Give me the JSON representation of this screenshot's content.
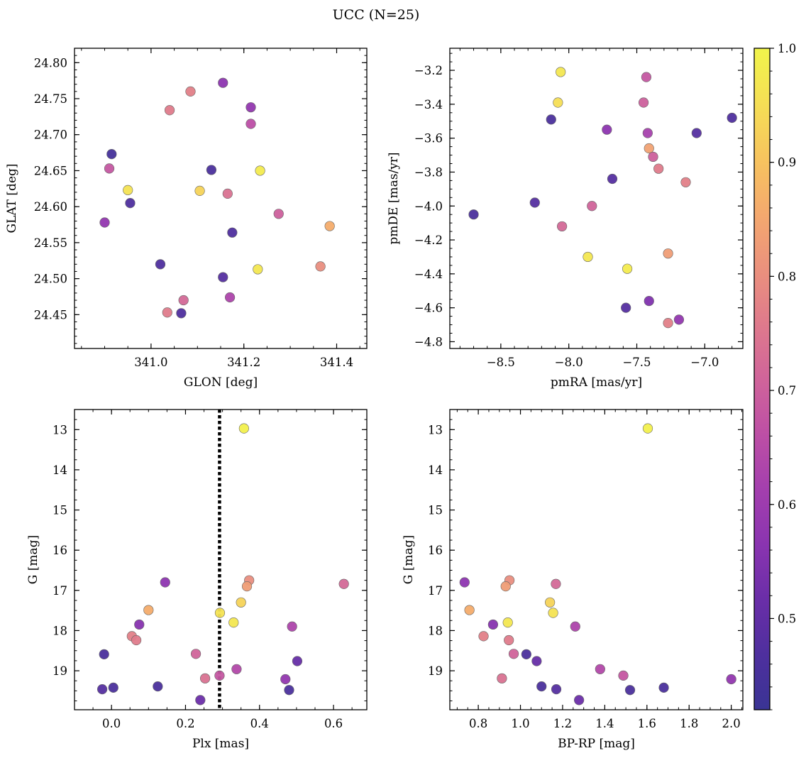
{
  "figure": {
    "title": "UCC (N=25)"
  },
  "colorbar": {
    "colormap": "plasma",
    "range": [
      0.42,
      1.0
    ],
    "ticks": [
      0.5,
      0.6,
      0.7,
      0.8,
      0.9,
      1.0
    ],
    "tick_labels": [
      "0.5",
      "0.6",
      "0.7",
      "0.8",
      "0.9",
      "1.0"
    ],
    "stops": [
      "#3a3494",
      "#4e2f9e",
      "#6a2ea8",
      "#8a34b0",
      "#a43fae",
      "#bd4fa5",
      "#d0649a",
      "#df7a8c",
      "#eb917d",
      "#f4a96e",
      "#f7c45e",
      "#f5df55",
      "#f1f44b"
    ]
  },
  "chart_data": [
    {
      "type": "scatter",
      "title": "",
      "xlabel": "GLON [deg]",
      "ylabel": "GLAT [deg]",
      "xlim": [
        340.835,
        341.465
      ],
      "ylim": [
        24.403,
        24.82
      ],
      "invert_y": false,
      "xticks": [
        341.0,
        341.2,
        341.4
      ],
      "xtick_labels": [
        "341.0",
        "341.2",
        "341.4"
      ],
      "xminor": 0.05,
      "yticks": [
        24.45,
        24.5,
        24.55,
        24.6,
        24.65,
        24.7,
        24.75,
        24.8
      ],
      "ytick_labels": [
        "24.45",
        "24.50",
        "24.55",
        "24.60",
        "24.65",
        "24.70",
        "24.75",
        "24.80"
      ],
      "yminor": 0.01,
      "points": [
        {
          "x": 340.915,
          "y": 24.673,
          "c": 0.45
        },
        {
          "x": 340.91,
          "y": 24.653,
          "c": 0.68
        },
        {
          "x": 340.95,
          "y": 24.623,
          "c": 0.96
        },
        {
          "x": 340.955,
          "y": 24.605,
          "c": 0.47
        },
        {
          "x": 340.9,
          "y": 24.578,
          "c": 0.58
        },
        {
          "x": 341.04,
          "y": 24.734,
          "c": 0.76
        },
        {
          "x": 341.085,
          "y": 24.76,
          "c": 0.77
        },
        {
          "x": 341.155,
          "y": 24.772,
          "c": 0.57
        },
        {
          "x": 341.215,
          "y": 24.738,
          "c": 0.58
        },
        {
          "x": 341.215,
          "y": 24.715,
          "c": 0.66
        },
        {
          "x": 341.13,
          "y": 24.651,
          "c": 0.46
        },
        {
          "x": 341.105,
          "y": 24.622,
          "c": 0.93
        },
        {
          "x": 341.165,
          "y": 24.618,
          "c": 0.74
        },
        {
          "x": 341.235,
          "y": 24.65,
          "c": 0.98
        },
        {
          "x": 341.275,
          "y": 24.59,
          "c": 0.7
        },
        {
          "x": 341.175,
          "y": 24.564,
          "c": 0.47
        },
        {
          "x": 341.385,
          "y": 24.573,
          "c": 0.86
        },
        {
          "x": 341.02,
          "y": 24.52,
          "c": 0.47
        },
        {
          "x": 341.155,
          "y": 24.502,
          "c": 0.48
        },
        {
          "x": 341.23,
          "y": 24.513,
          "c": 0.97
        },
        {
          "x": 341.365,
          "y": 24.517,
          "c": 0.8
        },
        {
          "x": 341.07,
          "y": 24.47,
          "c": 0.72
        },
        {
          "x": 341.035,
          "y": 24.453,
          "c": 0.76
        },
        {
          "x": 341.065,
          "y": 24.452,
          "c": 0.47
        },
        {
          "x": 341.17,
          "y": 24.474,
          "c": 0.63
        }
      ]
    },
    {
      "type": "scatter",
      "title": "",
      "xlabel": "pmRA [mas/yr]",
      "ylabel": "pmDE [mas/yr]",
      "xlim": [
        -8.875,
        -6.72
      ],
      "ylim": [
        -4.84,
        -3.07
      ],
      "invert_y": false,
      "xticks": [
        -8.5,
        -8.0,
        -7.5,
        -7.0
      ],
      "xtick_labels": [
        "−8.5",
        "−8.0",
        "−7.5",
        "−7.0"
      ],
      "xminor": 0.1,
      "yticks": [
        -4.8,
        -4.6,
        -4.4,
        -4.2,
        -4.0,
        -3.8,
        -3.6,
        -3.4,
        -3.2
      ],
      "ytick_labels": [
        "−4.8",
        "−4.6",
        "−4.4",
        "−4.2",
        "−4.0",
        "−3.8",
        "−3.6",
        "−3.4",
        "−3.2"
      ],
      "yminor": 0.05,
      "points": [
        {
          "x": -8.06,
          "y": -3.21,
          "c": 0.97
        },
        {
          "x": -8.08,
          "y": -3.39,
          "c": 0.95
        },
        {
          "x": -7.43,
          "y": -3.24,
          "c": 0.68
        },
        {
          "x": -7.45,
          "y": -3.39,
          "c": 0.7
        },
        {
          "x": -8.13,
          "y": -3.49,
          "c": 0.46
        },
        {
          "x": -7.72,
          "y": -3.55,
          "c": 0.57
        },
        {
          "x": -7.42,
          "y": -3.57,
          "c": 0.62
        },
        {
          "x": -7.06,
          "y": -3.57,
          "c": 0.48
        },
        {
          "x": -6.8,
          "y": -3.48,
          "c": 0.47
        },
        {
          "x": -7.41,
          "y": -3.66,
          "c": 0.84
        },
        {
          "x": -7.38,
          "y": -3.71,
          "c": 0.7
        },
        {
          "x": -7.34,
          "y": -3.78,
          "c": 0.76
        },
        {
          "x": -7.68,
          "y": -3.84,
          "c": 0.48
        },
        {
          "x": -7.14,
          "y": -3.86,
          "c": 0.77
        },
        {
          "x": -8.7,
          "y": -4.05,
          "c": 0.46
        },
        {
          "x": -8.25,
          "y": -3.98,
          "c": 0.48
        },
        {
          "x": -7.83,
          "y": -4.0,
          "c": 0.71
        },
        {
          "x": -8.05,
          "y": -4.12,
          "c": 0.72
        },
        {
          "x": -7.86,
          "y": -4.3,
          "c": 0.97
        },
        {
          "x": -7.57,
          "y": -4.37,
          "c": 0.98
        },
        {
          "x": -7.27,
          "y": -4.28,
          "c": 0.83
        },
        {
          "x": -7.58,
          "y": -4.6,
          "c": 0.48
        },
        {
          "x": -7.41,
          "y": -4.56,
          "c": 0.55
        },
        {
          "x": -7.27,
          "y": -4.69,
          "c": 0.77
        },
        {
          "x": -7.19,
          "y": -4.67,
          "c": 0.58
        }
      ]
    },
    {
      "type": "scatter",
      "title": "",
      "xlabel": "Plx [mas]",
      "ylabel": "G [mag]",
      "xlim": [
        -0.1,
        0.69
      ],
      "ylim": [
        12.5,
        19.97
      ],
      "invert_y": true,
      "xticks": [
        0.0,
        0.2,
        0.4,
        0.6
      ],
      "xtick_labels": [
        "0.0",
        "0.2",
        "0.4",
        "0.6"
      ],
      "xminor": 0.05,
      "yticks": [
        13,
        14,
        15,
        16,
        17,
        18,
        19
      ],
      "ytick_labels": [
        "13",
        "14",
        "15",
        "16",
        "17",
        "18",
        "19"
      ],
      "yminor": 0.25,
      "vline": 0.292,
      "points": [
        {
          "x": 0.358,
          "y": 12.97,
          "c": 0.99
        },
        {
          "x": 0.145,
          "y": 16.8,
          "c": 0.57
        },
        {
          "x": 0.372,
          "y": 16.75,
          "c": 0.8
        },
        {
          "x": 0.366,
          "y": 16.9,
          "c": 0.83
        },
        {
          "x": 0.628,
          "y": 16.84,
          "c": 0.72
        },
        {
          "x": 0.35,
          "y": 17.3,
          "c": 0.93
        },
        {
          "x": 0.1,
          "y": 17.49,
          "c": 0.86
        },
        {
          "x": 0.293,
          "y": 17.56,
          "c": 0.96
        },
        {
          "x": 0.33,
          "y": 17.8,
          "c": 0.97
        },
        {
          "x": 0.075,
          "y": 17.85,
          "c": 0.56
        },
        {
          "x": 0.488,
          "y": 17.9,
          "c": 0.63
        },
        {
          "x": 0.055,
          "y": 18.14,
          "c": 0.77
        },
        {
          "x": 0.067,
          "y": 18.24,
          "c": 0.76
        },
        {
          "x": -0.02,
          "y": 18.59,
          "c": 0.46
        },
        {
          "x": 0.228,
          "y": 18.58,
          "c": 0.71
        },
        {
          "x": 0.502,
          "y": 18.76,
          "c": 0.51
        },
        {
          "x": 0.338,
          "y": 18.96,
          "c": 0.64
        },
        {
          "x": 0.292,
          "y": 19.12,
          "c": 0.68
        },
        {
          "x": 0.253,
          "y": 19.19,
          "c": 0.74
        },
        {
          "x": 0.47,
          "y": 19.21,
          "c": 0.58
        },
        {
          "x": -0.025,
          "y": 19.46,
          "c": 0.48
        },
        {
          "x": 0.005,
          "y": 19.42,
          "c": 0.46
        },
        {
          "x": 0.125,
          "y": 19.39,
          "c": 0.46
        },
        {
          "x": 0.48,
          "y": 19.48,
          "c": 0.46
        },
        {
          "x": 0.24,
          "y": 19.73,
          "c": 0.52
        }
      ]
    },
    {
      "type": "scatter",
      "title": "",
      "xlabel": "BP-RP [mag]",
      "ylabel": "G [mag]",
      "xlim": [
        0.665,
        2.055
      ],
      "ylim": [
        12.5,
        19.97
      ],
      "invert_y": true,
      "xticks": [
        0.8,
        1.0,
        1.2,
        1.4,
        1.6,
        1.8,
        2.0
      ],
      "xtick_labels": [
        "0.8",
        "1.0",
        "1.2",
        "1.4",
        "1.6",
        "1.8",
        "2.0"
      ],
      "xminor": 0.05,
      "yticks": [
        13,
        14,
        15,
        16,
        17,
        18,
        19
      ],
      "ytick_labels": [
        "13",
        "14",
        "15",
        "16",
        "17",
        "18",
        "19"
      ],
      "yminor": 0.25,
      "points": [
        {
          "x": 1.604,
          "y": 12.97,
          "c": 0.99
        },
        {
          "x": 0.735,
          "y": 16.8,
          "c": 0.57
        },
        {
          "x": 0.948,
          "y": 16.75,
          "c": 0.8
        },
        {
          "x": 0.93,
          "y": 16.9,
          "c": 0.83
        },
        {
          "x": 1.168,
          "y": 16.84,
          "c": 0.72
        },
        {
          "x": 1.14,
          "y": 17.3,
          "c": 0.93
        },
        {
          "x": 0.758,
          "y": 17.49,
          "c": 0.86
        },
        {
          "x": 1.155,
          "y": 17.56,
          "c": 0.96
        },
        {
          "x": 0.94,
          "y": 17.8,
          "c": 0.97
        },
        {
          "x": 0.87,
          "y": 17.85,
          "c": 0.56
        },
        {
          "x": 1.26,
          "y": 17.9,
          "c": 0.63
        },
        {
          "x": 0.825,
          "y": 18.14,
          "c": 0.77
        },
        {
          "x": 0.945,
          "y": 18.24,
          "c": 0.76
        },
        {
          "x": 1.028,
          "y": 18.59,
          "c": 0.46
        },
        {
          "x": 0.968,
          "y": 18.58,
          "c": 0.71
        },
        {
          "x": 1.077,
          "y": 18.76,
          "c": 0.51
        },
        {
          "x": 1.378,
          "y": 18.96,
          "c": 0.64
        },
        {
          "x": 1.488,
          "y": 19.12,
          "c": 0.68
        },
        {
          "x": 0.912,
          "y": 19.19,
          "c": 0.74
        },
        {
          "x": 2.0,
          "y": 19.21,
          "c": 0.58
        },
        {
          "x": 1.17,
          "y": 19.46,
          "c": 0.48
        },
        {
          "x": 1.68,
          "y": 19.42,
          "c": 0.46
        },
        {
          "x": 1.1,
          "y": 19.39,
          "c": 0.46
        },
        {
          "x": 1.52,
          "y": 19.48,
          "c": 0.46
        },
        {
          "x": 1.278,
          "y": 19.73,
          "c": 0.52
        }
      ]
    }
  ]
}
